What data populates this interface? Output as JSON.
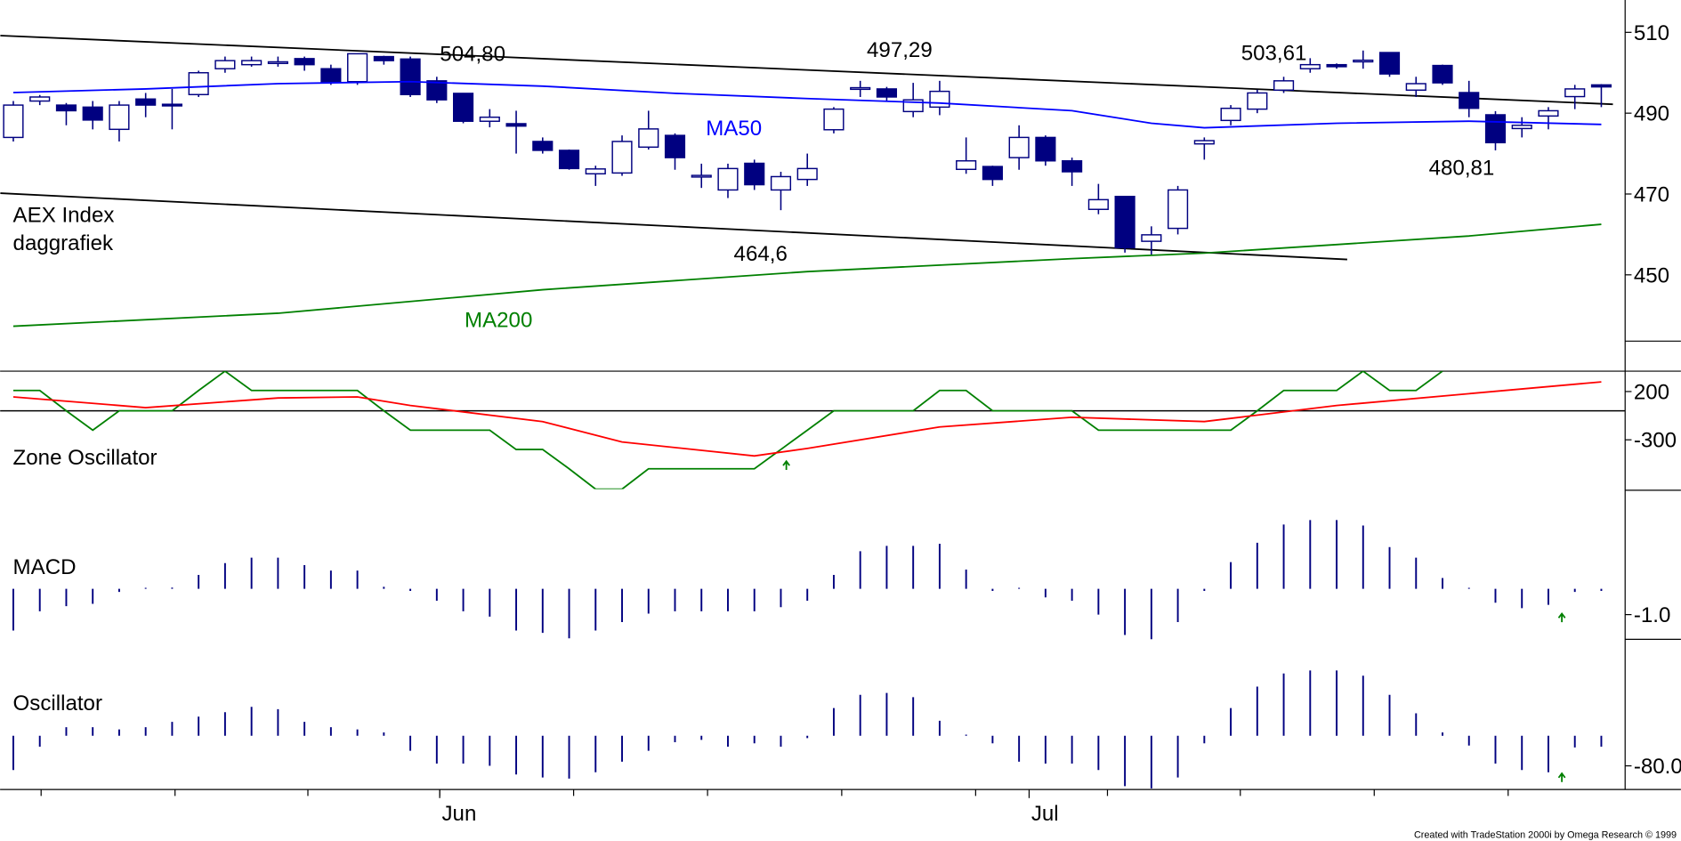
{
  "chart_data": [
    {
      "type": "candlestick",
      "title": [
        "AEX Index",
        "daggrafiek"
      ],
      "color": "#000080",
      "xlim": [
        -0.5,
        60.9
      ],
      "ylim": [
        433.6,
        518
      ],
      "yticks": [
        450,
        470,
        490,
        510
      ],
      "open": [
        484,
        493,
        492,
        491.5,
        486,
        493.5,
        492.2,
        494.6,
        501,
        502,
        502.5,
        503.5,
        501,
        497.8,
        504,
        503.4,
        498,
        494.9,
        488,
        487.4,
        483,
        480.8,
        475,
        475.2,
        481.6,
        484.5,
        474.5,
        471,
        477.6,
        471,
        473.6,
        485.9,
        496.2,
        496,
        490.4,
        491.5,
        476.1,
        476.8,
        479,
        484,
        478.2,
        466.2,
        469.4,
        458.3,
        461.5,
        482.4,
        488.2,
        491,
        495.7,
        501,
        502,
        503,
        505,
        495.7,
        501.8,
        495.1,
        489.6,
        486.2,
        489.3,
        494.1,
        497
      ],
      "high": [
        493,
        494.5,
        492.5,
        493,
        493,
        495,
        496,
        500.5,
        504,
        504,
        504,
        504,
        502,
        504.8,
        504.2,
        504,
        499,
        495,
        491,
        490.6,
        484,
        481,
        477,
        484.5,
        490.6,
        485,
        477.5,
        477.5,
        478.5,
        475.5,
        480,
        491.5,
        498,
        496.5,
        497.5,
        498,
        484,
        477,
        487,
        484.5,
        479,
        472.5,
        469.5,
        462,
        472,
        484,
        492,
        495.8,
        499,
        503.6,
        502.3,
        505.5,
        505,
        499,
        502,
        498,
        490.5,
        489,
        491.5,
        497,
        497.2
      ],
      "low": [
        483,
        492,
        487,
        486,
        483,
        489,
        486,
        494,
        500,
        501.5,
        501.5,
        500.5,
        497,
        497,
        502,
        494,
        492.5,
        487.5,
        486.5,
        480,
        480,
        476,
        472,
        474.5,
        481,
        476,
        471.5,
        469,
        471,
        466,
        472,
        485,
        494,
        493,
        489,
        489.5,
        475,
        472,
        476,
        477,
        472,
        465,
        455.5,
        455,
        460,
        478.5,
        487,
        490,
        495,
        500,
        501,
        501,
        499,
        494,
        497,
        489,
        480.8,
        484,
        486,
        491,
        491.5
      ],
      "close": [
        492,
        494,
        490.6,
        488.3,
        492,
        492,
        491.8,
        500,
        503,
        503,
        502.7,
        502,
        497.8,
        504.7,
        503,
        494.6,
        493.3,
        488,
        489,
        486.8,
        480.8,
        476.3,
        476.2,
        483,
        486.1,
        479,
        474.6,
        476.3,
        472.3,
        474.3,
        476.3,
        491,
        496.3,
        494,
        493.3,
        495.4,
        478.2,
        473.6,
        484,
        478.2,
        475.5,
        468.6,
        456.7,
        459.9,
        471,
        483.2,
        491.2,
        495,
        498,
        502,
        501.5,
        503.1,
        499.7,
        497.3,
        497.5,
        491.2,
        482.7,
        487,
        490.6,
        496,
        496.5
      ],
      "series": [
        {
          "name": "MA50",
          "color": "#0000ff",
          "x": [
            0,
            5,
            10,
            15,
            20,
            25,
            30,
            35,
            40,
            43,
            45,
            50,
            55,
            60
          ],
          "values": [
            495.1,
            496,
            497.3,
            497.8,
            496.7,
            494.9,
            493.6,
            492.5,
            490.6,
            487.5,
            486.4,
            487.5,
            488,
            487.2
          ]
        },
        {
          "name": "MA200",
          "color": "#008000",
          "x": [
            0,
            10,
            20,
            30,
            40,
            45,
            50,
            55,
            60
          ],
          "values": [
            437.3,
            440.5,
            446.3,
            450.8,
            454,
            455.4,
            457.5,
            459.6,
            462.5
          ]
        }
      ],
      "trendlines": [
        {
          "color": "#000000",
          "x": [
            -0.49,
            60.44
          ],
          "values": [
            509.2,
            492.2
          ]
        },
        {
          "color": "#000000",
          "x": [
            -0.49,
            50.4
          ],
          "values": [
            470.2,
            453.8
          ]
        }
      ],
      "annotations": [
        "504,80",
        "497,29",
        "503,61",
        "480,81",
        "464,6"
      ]
    },
    {
      "type": "line",
      "title": "Zone Oscillator",
      "xlim": [
        -0.5,
        60.9
      ],
      "ylim": [
        -811,
        411
      ],
      "yticks": [
        200,
        -300
      ],
      "hline": 0,
      "series": [
        {
          "color": "#008000",
          "x": [
            0,
            1,
            2,
            3,
            4,
            5,
            6,
            7,
            8,
            9,
            10,
            11,
            12,
            13,
            14,
            15,
            16,
            17,
            18,
            19,
            20,
            21,
            22,
            23,
            24,
            25,
            26,
            27,
            28,
            29,
            30,
            31,
            32,
            33,
            34,
            35,
            36,
            37,
            38,
            39,
            40,
            41,
            42,
            43,
            44,
            45,
            46,
            47,
            48,
            49,
            50,
            51,
            52,
            53,
            54
          ],
          "values": [
            211,
            211,
            0,
            -200,
            0,
            0,
            0,
            211,
            411,
            211,
            211,
            211,
            211,
            211,
            0,
            -200,
            -200,
            -200,
            -200,
            -400,
            -400,
            -600,
            -811,
            -811,
            -600,
            -600,
            -600,
            -600,
            -600,
            -400,
            -200,
            0,
            0,
            0,
            0,
            211,
            211,
            0,
            0,
            0,
            0,
            -200,
            -200,
            -200,
            -200,
            -200,
            -200,
            0,
            211,
            211,
            211,
            411,
            211,
            211,
            411
          ]
        },
        {
          "color": "#ff0000",
          "x": [
            0,
            5,
            10,
            13,
            15,
            20,
            23,
            28,
            30,
            35,
            40,
            45,
            50,
            55,
            60
          ],
          "values": [
            144,
            33,
            133,
            144,
            56,
            -111,
            -322,
            -467,
            -389,
            -167,
            -67,
            -111,
            56,
            178,
            300
          ]
        }
      ]
    },
    {
      "type": "bar",
      "title": "MACD",
      "color": "#000080",
      "xlim": [
        -0.5,
        60.9
      ],
      "ylim": [
        -1.96,
        3.83
      ],
      "yticks": [
        {
          "value": -1,
          "label": "-1.0"
        }
      ],
      "values": [
        -1.62,
        -0.87,
        -0.67,
        -0.58,
        -0.12,
        0,
        0.05,
        0.54,
        1.0,
        1.21,
        1.21,
        0.92,
        0.71,
        0.71,
        0.08,
        -0.08,
        -0.46,
        -0.87,
        -1.08,
        -1.62,
        -1.71,
        -1.92,
        -1.62,
        -1.29,
        -0.96,
        -0.87,
        -0.87,
        -0.87,
        -0.87,
        -0.71,
        -0.46,
        0.54,
        1.46,
        1.67,
        1.67,
        1.75,
        0.75,
        -0.08,
        0.04,
        -0.33,
        -0.46,
        -1.0,
        -1.79,
        -1.96,
        -1.29,
        -0.08,
        1.04,
        1.79,
        2.5,
        2.67,
        2.67,
        2.46,
        1.62,
        1.21,
        0.42,
        0,
        -0.54,
        -0.75,
        -0.62,
        -0.12,
        -0.08
      ]
    },
    {
      "type": "bar",
      "title": "Oscillator",
      "color": "#000080",
      "xlim": [
        -0.5,
        60.9
      ],
      "ylim": [
        -143,
        254
      ],
      "yticks": [
        {
          "value": -80,
          "label": "-80.0"
        }
      ],
      "values": [
        -91,
        -29,
        23,
        23,
        17,
        23,
        37,
        51,
        63,
        77,
        71,
        37,
        23,
        17,
        9,
        -40,
        -74,
        -74,
        -80,
        -103,
        -111,
        -114,
        -97,
        -69,
        -40,
        -17,
        -11,
        -29,
        -20,
        -29,
        -6,
        74,
        109,
        114,
        103,
        40,
        3,
        -20,
        -69,
        -74,
        -74,
        -91,
        -134,
        -140,
        -111,
        -20,
        74,
        131,
        166,
        174,
        174,
        160,
        109,
        60,
        9,
        -26,
        -74,
        -91,
        -97,
        -31,
        -29
      ],
      "xticks": [
        {
          "value": 16.11,
          "label": "Jun"
        },
        {
          "value": 38.38,
          "label": "Jul"
        }
      ],
      "minor_xticks": [
        1.05,
        6.11,
        11.13,
        16.11,
        21.17,
        26.23,
        31.3,
        36.36,
        41.34,
        46.36,
        51.42,
        56.48
      ]
    }
  ],
  "footer": "Created with TradeStation 2000i by Omega Research © 1999"
}
